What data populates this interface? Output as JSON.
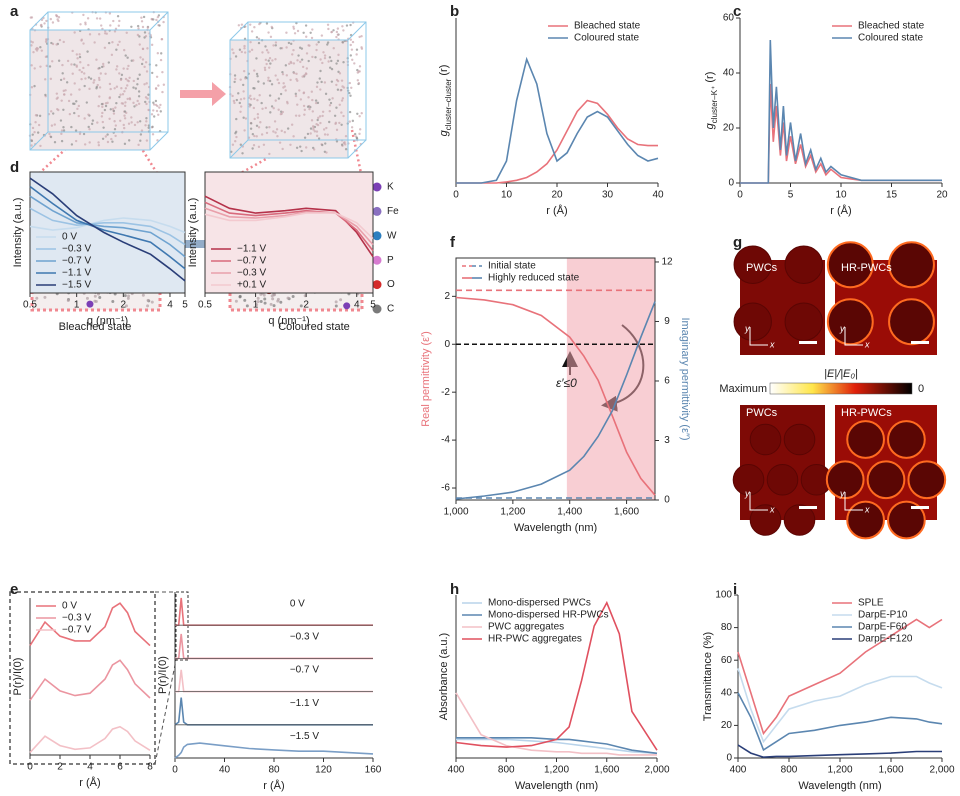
{
  "figure": {
    "panel_labels": [
      "a",
      "b",
      "c",
      "d",
      "e",
      "f",
      "g",
      "h",
      "i"
    ]
  },
  "panel_a": {
    "states": [
      "Bleached state",
      "Coloured state"
    ],
    "atoms": [
      {
        "label": "K",
        "color": "#7b3fb5"
      },
      {
        "label": "Fe",
        "color": "#8a6fc0"
      },
      {
        "label": "W",
        "color": "#2c7fc0"
      },
      {
        "label": "P",
        "color": "#d77bd0"
      },
      {
        "label": "O",
        "color": "#d42a2a"
      },
      {
        "label": "C",
        "color": "#7a7a7a"
      }
    ]
  },
  "panel_g": {
    "labels_top": [
      "PWCs",
      "HR-PWCs"
    ],
    "labels_bottom": [
      "PWCs",
      "HR-PWCs"
    ],
    "axis_labels": [
      "y",
      "x"
    ],
    "colorbar": {
      "min_label": "Maximum",
      "title": "|E|/|E₀|",
      "max_label": "0"
    }
  },
  "chart_data": [
    {
      "type": "line",
      "x": [
        0,
        5,
        8,
        10,
        12,
        14,
        16,
        18,
        20,
        22,
        24,
        26,
        28,
        30,
        32,
        34,
        36,
        38,
        40
      ],
      "series": [
        {
          "name": "Bleached state",
          "color": "#e8727a",
          "values": [
            0,
            0,
            0,
            0.02,
            0.05,
            0.1,
            0.2,
            0.35,
            0.6,
            0.95,
            1.3,
            1.5,
            1.45,
            1.25,
            1.0,
            0.8,
            0.7,
            0.68,
            0.68
          ]
        },
        {
          "name": "Coloured state",
          "color": "#5b86b0",
          "values": [
            0,
            0,
            0.05,
            0.4,
            1.5,
            2.25,
            1.8,
            0.9,
            0.4,
            0.55,
            0.9,
            1.2,
            1.3,
            1.2,
            0.95,
            0.7,
            0.5,
            0.4,
            0.45
          ]
        }
      ],
      "xlim": [
        0,
        40
      ],
      "xticks": [
        0,
        10,
        20,
        30,
        40
      ],
      "ylim": [
        0,
        3
      ],
      "x_label": "r (Å)",
      "y_label": {
        "text": "g",
        "sub": "cluster–cluster",
        "suffix": " (r)"
      },
      "legend": "upper right"
    },
    {
      "type": "line",
      "x": [
        0,
        2.8,
        3.0,
        3.3,
        3.6,
        4,
        4.3,
        4.6,
        5,
        5.5,
        6,
        6.5,
        7,
        7.5,
        8,
        8.5,
        9,
        10,
        11,
        12,
        15,
        20
      ],
      "series": [
        {
          "name": "Bleached state",
          "color": "#e8727a",
          "values": [
            0,
            0,
            36,
            15,
            28,
            10,
            22,
            8,
            17,
            7,
            14,
            6,
            10,
            4,
            7,
            3,
            5,
            2,
            1.5,
            1,
            1,
            1
          ]
        },
        {
          "name": "Coloured state",
          "color": "#5b86b0",
          "values": [
            0,
            0,
            52,
            20,
            35,
            12,
            28,
            10,
            22,
            8,
            18,
            7,
            12,
            5,
            9,
            4,
            6,
            3,
            2,
            1,
            1,
            1
          ]
        }
      ],
      "xlim": [
        0,
        20
      ],
      "xticks": [
        0,
        5,
        10,
        15,
        20
      ],
      "ylim": [
        0,
        60
      ],
      "yticks": [
        0,
        20,
        40,
        60
      ],
      "x_label": "r (Å)",
      "y_label": {
        "text": "g",
        "sub": "cluster–K⁺",
        "suffix": " (r)"
      },
      "legend": "upper right"
    },
    {
      "type": "line",
      "x": [
        0.5,
        0.7,
        1,
        1.5,
        2,
        3,
        4,
        5
      ],
      "log_x": true,
      "frame": "box",
      "background": "#dfe8f2",
      "series": [
        {
          "name": "0 V",
          "color": "#c6dcee",
          "values": [
            0.55,
            0.52,
            0.54,
            0.6,
            0.62,
            0.6,
            0.55,
            0.5
          ]
        },
        {
          "name": "−0.3 V",
          "color": "#9cc3e4",
          "values": [
            0.7,
            0.6,
            0.56,
            0.58,
            0.58,
            0.55,
            0.48,
            0.4
          ]
        },
        {
          "name": "−0.7 V",
          "color": "#6fa3d0",
          "values": [
            0.8,
            0.68,
            0.58,
            0.55,
            0.54,
            0.5,
            0.4,
            0.3
          ]
        },
        {
          "name": "−1.1 V",
          "color": "#3f78b0",
          "values": [
            0.88,
            0.74,
            0.6,
            0.52,
            0.48,
            0.42,
            0.3,
            0.2
          ]
        },
        {
          "name": "−1.5 V",
          "color": "#2a3e78",
          "values": [
            0.95,
            0.82,
            0.64,
            0.5,
            0.42,
            0.32,
            0.2,
            0.1
          ]
        }
      ],
      "xlim": [
        0.5,
        5
      ],
      "xticks": [
        0.5,
        1,
        2,
        4,
        5
      ],
      "ylim": [
        0,
        1
      ],
      "x_label": "q (nm⁻¹)",
      "y_label": "Intensity (a.u.)",
      "legend": "lower left"
    },
    {
      "type": "line",
      "x": [
        0.5,
        0.7,
        1,
        1.5,
        2,
        3,
        4,
        5
      ],
      "log_x": true,
      "frame": "box",
      "background": "#f7e4e7",
      "series": [
        {
          "name": "−1.1 V",
          "color": "#b5324a",
          "values": [
            0.8,
            0.7,
            0.66,
            0.68,
            0.7,
            0.68,
            0.5,
            0.3
          ]
        },
        {
          "name": "−0.7 V",
          "color": "#d86a7c",
          "values": [
            0.75,
            0.66,
            0.64,
            0.66,
            0.68,
            0.66,
            0.52,
            0.35
          ]
        },
        {
          "name": "−0.3 V",
          "color": "#e9a0ab",
          "values": [
            0.7,
            0.63,
            0.62,
            0.64,
            0.67,
            0.66,
            0.55,
            0.4
          ]
        },
        {
          "name": "+0.1 V",
          "color": "#f3c9cf",
          "values": [
            0.65,
            0.6,
            0.6,
            0.63,
            0.66,
            0.66,
            0.58,
            0.45
          ]
        }
      ],
      "xlim": [
        0.5,
        5
      ],
      "xticks": [
        0.5,
        1,
        2,
        4,
        5
      ],
      "ylim": [
        0,
        1
      ],
      "x_label": "q (nm⁻¹)",
      "y_label": "Intensity (a.u.)",
      "legend": "lower left"
    },
    {
      "type": "line",
      "stacked_rows": true,
      "x": [
        0,
        1,
        2,
        3,
        4,
        5,
        5.5,
        6,
        6.5,
        7,
        8
      ],
      "series": [
        {
          "name": "0 V",
          "color": "#e8727a",
          "values": [
            0.1,
            0.6,
            0.3,
            0.2,
            0.2,
            0.5,
            0.9,
            1.0,
            0.8,
            0.4,
            0.1
          ]
        },
        {
          "name": "−0.3 V",
          "color": "#eb95a0",
          "values": [
            0.05,
            0.5,
            0.25,
            0.15,
            0.2,
            0.5,
            0.8,
            0.9,
            0.7,
            0.4,
            0.1
          ]
        },
        {
          "name": "−0.7 V",
          "color": "#f3c0c6",
          "values": [
            0.05,
            0.4,
            0.2,
            0.12,
            0.15,
            0.35,
            0.55,
            0.6,
            0.5,
            0.3,
            0.1
          ]
        }
      ],
      "xlim": [
        0,
        8
      ],
      "xticks": [
        0,
        2,
        4,
        6,
        8
      ],
      "ylim": [
        0,
        1
      ],
      "x_label": "r (Å)",
      "y_label": "P(r)/I(0)",
      "legend": "upper left"
    },
    {
      "type": "line",
      "stacked_rows": true,
      "row_labels": true,
      "x": [
        0,
        3,
        5,
        7,
        10,
        20,
        40,
        60,
        80,
        100,
        120,
        140,
        160
      ],
      "series": [
        {
          "name": "0 V",
          "color": "#e8727a",
          "values": [
            0,
            0,
            1,
            0,
            0,
            0,
            0,
            0,
            0,
            0,
            0,
            0,
            0
          ]
        },
        {
          "name": "−0.3 V",
          "color": "#eb95a0",
          "values": [
            0,
            0,
            0.9,
            0,
            0,
            0,
            0,
            0,
            0,
            0,
            0,
            0,
            0
          ]
        },
        {
          "name": "−0.7 V",
          "color": "#f3c0c6",
          "values": [
            0,
            0,
            0.8,
            0,
            0,
            0,
            0,
            0,
            0,
            0,
            0,
            0,
            0
          ]
        },
        {
          "name": "−1.1 V",
          "color": "#5b86b0",
          "values": [
            0,
            0.1,
            1,
            0.1,
            0,
            0,
            0,
            0,
            0,
            0,
            0,
            0,
            0
          ]
        },
        {
          "name": "−1.5 V",
          "color": "#7a9ec6",
          "values": [
            0,
            0.1,
            0.2,
            0.4,
            0.5,
            0.55,
            0.45,
            0.35,
            0.3,
            0.25,
            0.25,
            0.2,
            0.15
          ]
        }
      ],
      "xlim": [
        0,
        160
      ],
      "xticks": [
        0,
        40,
        80,
        120,
        160
      ],
      "ylim": [
        0,
        1.1
      ],
      "x_label": "r (Å)",
      "y_label": "P(r)/I(0)"
    },
    {
      "type": "line",
      "frame": "box",
      "x": [
        1000,
        1100,
        1200,
        1300,
        1400,
        1450,
        1500,
        1550,
        1600,
        1650,
        1700
      ],
      "series": [
        {
          "color": "#e8727a",
          "style": "dashed",
          "values": [
            2.25,
            2.25,
            2.25,
            2.25,
            2.25,
            2.25,
            2.25,
            2.25,
            2.25,
            2.25,
            2.25
          ]
        },
        {
          "color": "#e8727a",
          "values": [
            1.95,
            1.85,
            1.65,
            1.2,
            0.3,
            -0.5,
            -1.5,
            -3,
            -4.5,
            -5.6,
            -6.3
          ]
        },
        {
          "color": "#5b86b0",
          "style": "dashed",
          "axis": "y2",
          "values": [
            0.1,
            0.1,
            0.1,
            0.1,
            0.1,
            0.1,
            0.1,
            0.1,
            0.1,
            0.1,
            0.1
          ]
        },
        {
          "color": "#5b86b0",
          "axis": "y2",
          "values": [
            0.05,
            0.2,
            0.4,
            0.8,
            1.5,
            2.2,
            3.2,
            4.5,
            6.3,
            8.2,
            10
          ]
        }
      ],
      "legend_entries": [
        {
          "label": "Initial state",
          "style": "dashed",
          "colors": [
            "#e8727a",
            "#5b86b0"
          ]
        },
        {
          "label": "Highly reduced state",
          "style": "solid",
          "colors": [
            "#e8727a",
            "#5b86b0"
          ]
        }
      ],
      "legend": "upper left",
      "reference_line": 0,
      "shade_x": [
        1390,
        1700
      ],
      "annotation": "ε′≤0",
      "xlim": [
        1000,
        1700
      ],
      "xticks": [
        {
          "value": 1000,
          "label": "1,000"
        },
        {
          "value": 1200,
          "label": "1,200"
        },
        {
          "value": 1400,
          "label": "1,400"
        },
        {
          "value": 1600,
          "label": "1,600"
        }
      ],
      "ylim": [
        -6.5,
        3.6
      ],
      "yticks": [
        2,
        0,
        -2,
        -4,
        -6
      ],
      "y2lim": [
        0,
        12.2
      ],
      "y2ticks": [
        0,
        3,
        6,
        9,
        12
      ],
      "x_label": "Wavelength (nm)",
      "y_label": "Real permittivity (ε′)",
      "y_label_color": "#e8727a",
      "y2_label": "Imaginary permittivity (ε″)",
      "y2_label_color": "#5b86b0"
    },
    {
      "type": "line",
      "x": [
        400,
        600,
        800,
        1000,
        1200,
        1300,
        1400,
        1500,
        1600,
        1700,
        1800,
        2000
      ],
      "series": [
        {
          "name": "Mono-dispersed PWCs",
          "color": "#b9d3ea",
          "values": [
            0.12,
            0.12,
            0.12,
            0.11,
            0.1,
            0.09,
            0.08,
            0.07,
            0.06,
            0.05,
            0.04,
            0.03
          ]
        },
        {
          "name": "Mono-dispersed HR-PWCs",
          "color": "#5b86b0",
          "values": [
            0.13,
            0.13,
            0.13,
            0.13,
            0.12,
            0.12,
            0.11,
            0.1,
            0.09,
            0.07,
            0.05,
            0.03
          ]
        },
        {
          "name": "PWC aggregates",
          "color": "#f3c0c6",
          "values": [
            0.42,
            0.15,
            0.08,
            0.05,
            0.04,
            0.04,
            0.03,
            0.03,
            0.03,
            0.02,
            0.02,
            0.02
          ]
        },
        {
          "name": "HR-PWC aggregates",
          "color": "#e0505f",
          "values": [
            0.1,
            0.08,
            0.07,
            0.08,
            0.12,
            0.2,
            0.5,
            0.85,
            1.0,
            0.8,
            0.3,
            0.05
          ]
        }
      ],
      "xlim": [
        400,
        2000
      ],
      "xticks": [
        400,
        800,
        {
          "value": 1200,
          "label": "1,200"
        },
        {
          "value": 1600,
          "label": "1,600"
        },
        {
          "value": 2000,
          "label": "2,000"
        }
      ],
      "ylim": [
        0,
        1.05
      ],
      "x_label": "Wavelength (nm)",
      "y_label": "Absorbance (a.u.)",
      "legend": "upper left"
    },
    {
      "type": "line",
      "x": [
        400,
        500,
        600,
        700,
        800,
        1000,
        1200,
        1400,
        1600,
        1800,
        1900,
        2000
      ],
      "series": [
        {
          "name": "SPLE",
          "color": "#e8727a",
          "values": [
            65,
            40,
            15,
            25,
            38,
            45,
            52,
            65,
            75,
            85,
            80,
            85
          ]
        },
        {
          "name": "DarpE-P10",
          "color": "#c6dcee",
          "values": [
            55,
            30,
            10,
            20,
            30,
            35,
            38,
            45,
            50,
            50,
            46,
            43
          ]
        },
        {
          "name": "DarpE-F60",
          "color": "#5b86b0",
          "values": [
            40,
            25,
            5,
            10,
            15,
            17,
            20,
            22,
            25,
            24,
            22,
            21
          ]
        },
        {
          "name": "DarpE-F120",
          "color": "#2a3e78",
          "values": [
            8,
            3,
            0.5,
            1,
            1,
            1.5,
            2,
            2.5,
            3,
            4,
            4,
            4
          ]
        }
      ],
      "xlim": [
        400,
        2000
      ],
      "xticks": [
        400,
        800,
        {
          "value": 1200,
          "label": "1,200"
        },
        {
          "value": 1600,
          "label": "1,600"
        },
        {
          "value": 2000,
          "label": "2,000"
        }
      ],
      "ylim": [
        0,
        100
      ],
      "yticks": [
        0,
        20,
        40,
        60,
        80,
        100
      ],
      "x_label": "Wavelength (nm)",
      "y_label": "Transmittance (%)",
      "legend": "upper right"
    }
  ]
}
